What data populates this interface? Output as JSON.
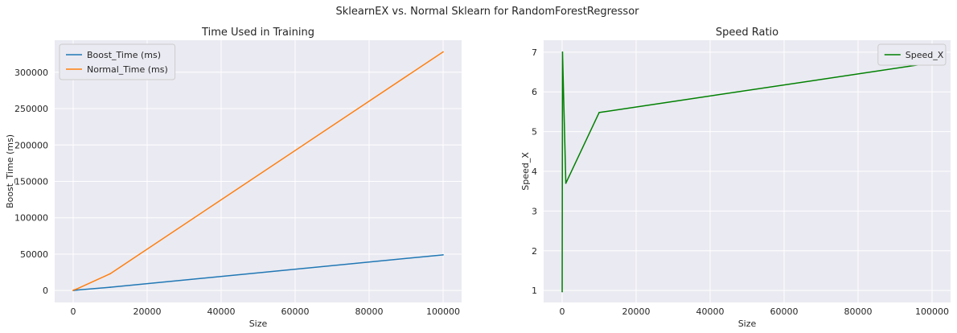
{
  "figure": {
    "suptitle": "SklearnEX vs. Normal Sklearn for RandomForestRegressor"
  },
  "chart_data": [
    {
      "type": "line",
      "title": "Time Used in Training",
      "xlabel": "Size",
      "ylabel": "Boost_Time (ms)",
      "xlim": [
        -5000,
        105000
      ],
      "ylim": [
        -16400,
        344000
      ],
      "x_ticks": [
        0,
        20000,
        40000,
        60000,
        80000,
        100000
      ],
      "y_ticks": [
        0,
        50000,
        100000,
        150000,
        200000,
        250000,
        300000
      ],
      "grid": true,
      "legend_position": "top-left",
      "series": [
        {
          "name": "Boost_Time (ms)",
          "color": "#1f77b4",
          "x": [
            10,
            100,
            1000,
            10000,
            100000
          ],
          "y": [
            10,
            100,
            600,
            4500,
            49000
          ]
        },
        {
          "name": "Normal_Time (ms)",
          "color": "#ff7f0e",
          "x": [
            10,
            100,
            1000,
            10000,
            100000
          ],
          "y": [
            10,
            700,
            2200,
            23000,
            328000
          ]
        }
      ]
    },
    {
      "type": "line",
      "title": "Speed Ratio",
      "xlabel": "Size",
      "ylabel": "Speed_X",
      "xlim": [
        -5000,
        105000
      ],
      "ylim": [
        0.7,
        7.3
      ],
      "x_ticks": [
        0,
        20000,
        40000,
        60000,
        80000,
        100000
      ],
      "y_ticks": [
        1,
        2,
        3,
        4,
        5,
        6,
        7
      ],
      "grid": true,
      "legend_position": "top-right",
      "series": [
        {
          "name": "Speed_X",
          "color": "#008000",
          "x": [
            10,
            100,
            1000,
            10000,
            100000
          ],
          "y": [
            0.97,
            7.0,
            3.7,
            5.48,
            6.73
          ]
        }
      ]
    }
  ]
}
